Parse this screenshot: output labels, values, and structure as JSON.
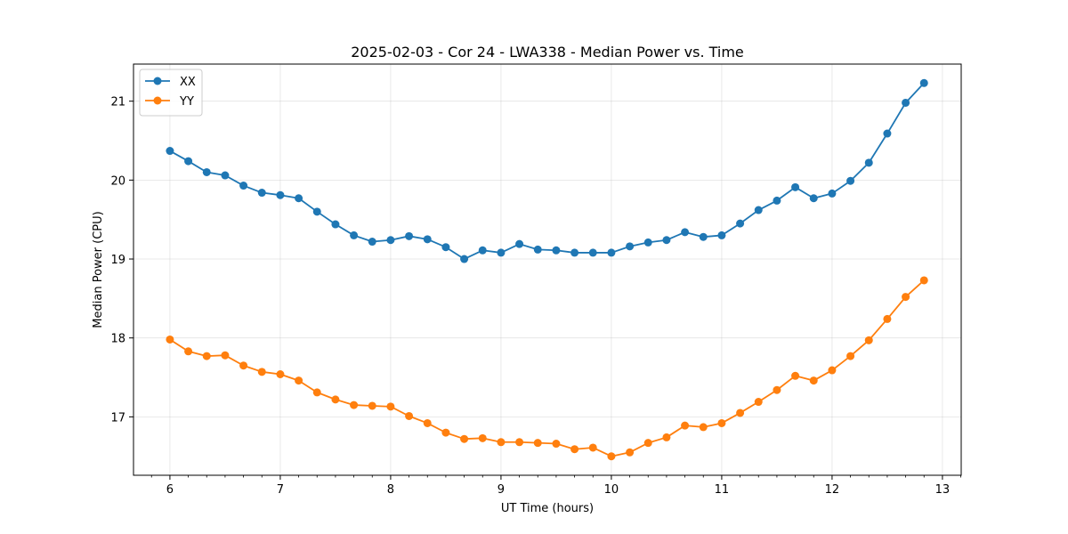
{
  "chart_data": {
    "type": "line",
    "title": "2025-02-03 - Cor 24 - LWA338 - Median Power vs. Time",
    "xlabel": "UT Time (hours)",
    "ylabel": "Median Power (CPU)",
    "xlim": [
      5.67,
      13.17
    ],
    "ylim": [
      16.26,
      21.47
    ],
    "x_ticks": [
      6,
      7,
      8,
      9,
      10,
      11,
      12,
      13
    ],
    "y_ticks": [
      17,
      18,
      19,
      20,
      21
    ],
    "grid": true,
    "legend_position": "top-left",
    "x": [
      6.0,
      6.1667,
      6.3333,
      6.5,
      6.6667,
      6.8333,
      7.0,
      7.1667,
      7.3333,
      7.5,
      7.6667,
      7.8333,
      8.0,
      8.1667,
      8.3333,
      8.5,
      8.6667,
      8.8333,
      9.0,
      9.1667,
      9.3333,
      9.5,
      9.6667,
      9.8333,
      10.0,
      10.1667,
      10.3333,
      10.5,
      10.6667,
      10.8333,
      11.0,
      11.1667,
      11.3333,
      11.5,
      11.6667,
      11.8333,
      12.0,
      12.1667,
      12.3333,
      12.5,
      12.6667,
      12.8333
    ],
    "series": [
      {
        "name": "XX",
        "color": "#1f77b4",
        "values": [
          20.37,
          20.24,
          20.1,
          20.06,
          19.93,
          19.84,
          19.81,
          19.77,
          19.6,
          19.44,
          19.3,
          19.22,
          19.24,
          19.29,
          19.25,
          19.15,
          19.0,
          19.11,
          19.08,
          19.19,
          19.12,
          19.11,
          19.08,
          19.08,
          19.08,
          19.16,
          19.21,
          19.24,
          19.34,
          19.28,
          19.3,
          19.45,
          19.62,
          19.74,
          19.91,
          19.77,
          19.83,
          19.99,
          20.22,
          20.59,
          20.98,
          21.23
        ]
      },
      {
        "name": "YY",
        "color": "#ff7f0e",
        "values": [
          17.98,
          17.83,
          17.77,
          17.78,
          17.65,
          17.57,
          17.54,
          17.46,
          17.31,
          17.22,
          17.15,
          17.14,
          17.13,
          17.01,
          16.92,
          16.8,
          16.72,
          16.73,
          16.68,
          16.68,
          16.67,
          16.66,
          16.59,
          16.61,
          16.5,
          16.55,
          16.67,
          16.74,
          16.89,
          16.87,
          16.92,
          17.05,
          17.19,
          17.34,
          17.52,
          17.46,
          17.59,
          17.77,
          17.97,
          18.24,
          18.52,
          18.73
        ]
      }
    ]
  }
}
